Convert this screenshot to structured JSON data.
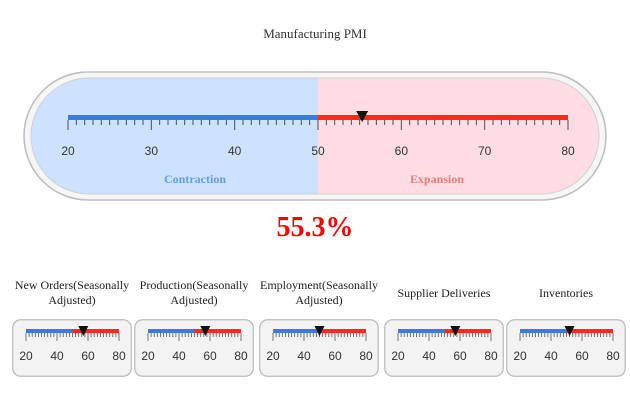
{
  "title": "Manufacturing PMI",
  "value_text": "55.3%",
  "colors": {
    "contraction": "#3a7ae8",
    "expansion": "#ff2a18",
    "contraction_bg": "#cde2ff",
    "expansion_bg": "#ffdde2"
  },
  "chart_data": {
    "type": "gauge",
    "main": {
      "title": "Manufacturing PMI",
      "value": 55.3,
      "range": [
        20,
        80
      ],
      "threshold": 50,
      "ticks": [
        "20",
        "30",
        "40",
        "50",
        "60",
        "70",
        "80"
      ],
      "zones": [
        "Contraction",
        "Expansion"
      ]
    },
    "subgauges": [
      {
        "label": "New Orders(Seasonally Adjusted)",
        "value": 57,
        "range": [
          20,
          80
        ],
        "threshold": 50,
        "ticks": [
          "20",
          "40",
          "60",
          "80"
        ]
      },
      {
        "label": "Production(Seasonally Adjusted)",
        "value": 57,
        "range": [
          20,
          80
        ],
        "threshold": 50,
        "ticks": [
          "20",
          "40",
          "60",
          "80"
        ]
      },
      {
        "label": "Employment(Seasonally Adjusted)",
        "value": 50,
        "range": [
          20,
          80
        ],
        "threshold": 50,
        "ticks": [
          "20",
          "40",
          "60",
          "80"
        ]
      },
      {
        "label": "Supplier Deliveries",
        "value": 57,
        "range": [
          20,
          80
        ],
        "threshold": 50,
        "ticks": [
          "20",
          "40",
          "60",
          "80"
        ]
      },
      {
        "label": "Inventories",
        "value": 52,
        "range": [
          20,
          80
        ],
        "threshold": 50,
        "ticks": [
          "20",
          "40",
          "60",
          "80"
        ]
      }
    ]
  }
}
